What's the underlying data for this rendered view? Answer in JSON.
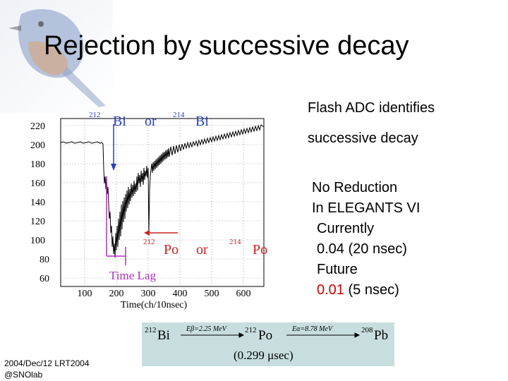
{
  "slide": {
    "title": "Rejection by successive decay",
    "note_line1": "Flash ADC identifies",
    "note_line2": "successive decay",
    "list": [
      "No Reduction",
      "In ELEGANTS VI",
      "Currently",
      "0.04 (20 nsec)",
      "Future"
    ],
    "future_value": "0.01",
    "future_suffix": " (5 nsec)",
    "footer_line1": "2004/Dec/12 LRT2004",
    "footer_line2": "@SNOlab"
  },
  "plot": {
    "y_ticks": [
      "220",
      "200",
      "180",
      "160",
      "140",
      "120",
      "100",
      "80",
      "60"
    ],
    "x_ticks": [
      "100",
      "200",
      "300",
      "400",
      "500",
      "600"
    ],
    "xlabel": "Time(ch/10nsec)",
    "top_label": {
      "mass1": "212",
      "el1": "Bi",
      "or": "or",
      "mass2": "214",
      "el2": "Bi"
    },
    "mid_label": {
      "mass1": "212",
      "el1": "Po",
      "or": "or",
      "mass2": "214",
      "el2": "Po"
    },
    "time_lag": "Time Lag",
    "colors": {
      "blue_arrow": "#2a3fbf",
      "red_arrow": "#cc2020",
      "magenta": "#b030c0"
    }
  },
  "equation": {
    "m1": "212",
    "e1": "Bi",
    "beta_energy": "Eβ=2.25 MeV",
    "m2": "212",
    "e2": "Po",
    "alpha_energy": "Eα=8.78 MeV",
    "m3": "208",
    "e3": "Pb",
    "halflife": "(0.299 μsec)"
  }
}
